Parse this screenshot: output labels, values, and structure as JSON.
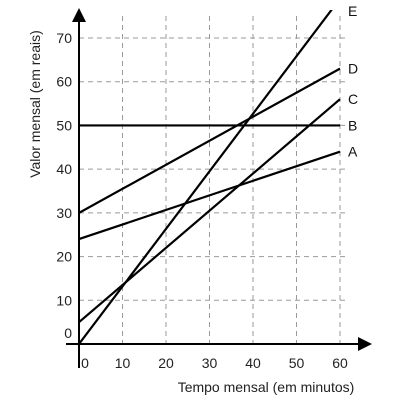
{
  "chart_data": {
    "type": "line",
    "xlabel": "Tempo mensal (em minutos)",
    "ylabel": "Valor mensal (em reais)",
    "xlim": [
      0,
      60
    ],
    "ylim": [
      0,
      70
    ],
    "x_ticks": [
      "0",
      "10",
      "20",
      "30",
      "40",
      "50",
      "60"
    ],
    "y_ticks": [
      "0",
      "10",
      "20",
      "30",
      "40",
      "50",
      "60",
      "70"
    ],
    "grid": true,
    "series": [
      {
        "name": "A",
        "x": [
          0,
          60
        ],
        "y": [
          24,
          44
        ]
      },
      {
        "name": "B",
        "x": [
          0,
          60
        ],
        "y": [
          50,
          50
        ]
      },
      {
        "name": "C",
        "x": [
          0,
          60
        ],
        "y": [
          5,
          56
        ]
      },
      {
        "name": "D",
        "x": [
          0,
          60
        ],
        "y": [
          30,
          63
        ]
      },
      {
        "name": "E",
        "x": [
          0,
          60
        ],
        "y": [
          0,
          79
        ]
      }
    ]
  }
}
